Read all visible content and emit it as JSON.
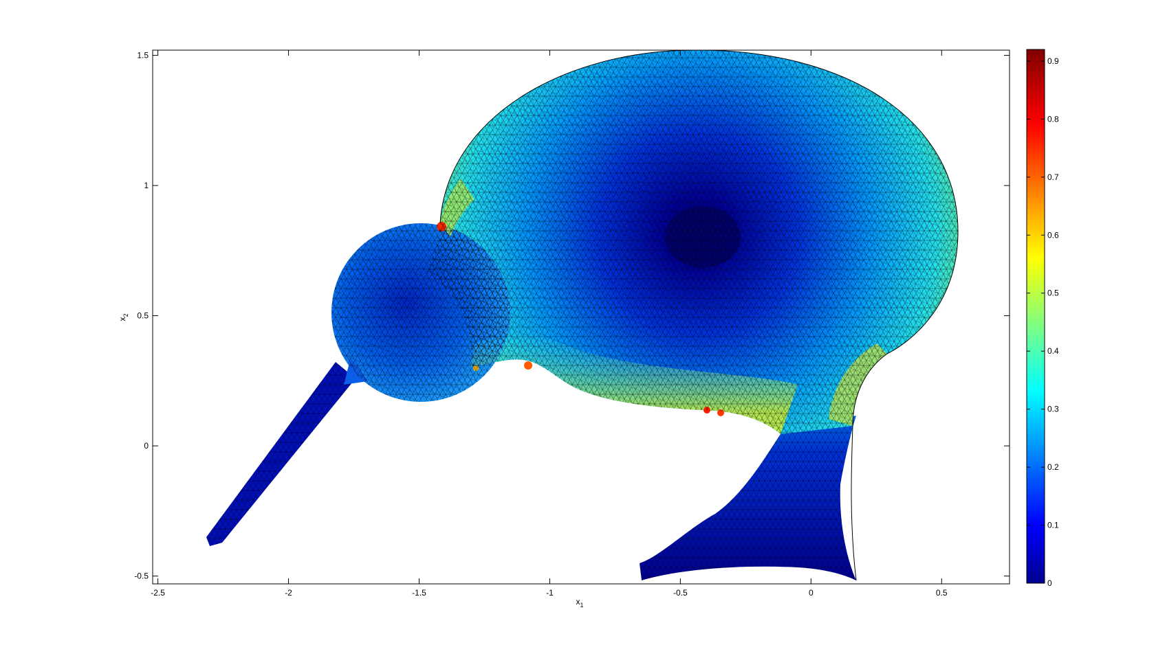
{
  "chart_data": {
    "type": "heatmap",
    "title": "",
    "xlabel": "x",
    "xlabel_sub": "1",
    "ylabel": "x",
    "ylabel_sub": "2",
    "xlim": [
      -2.52,
      0.76
    ],
    "ylim": [
      -0.53,
      1.52
    ],
    "xticks": [
      -2.5,
      -2,
      -1.5,
      -1,
      -0.5,
      0,
      0.5
    ],
    "xtick_labels": [
      "-2.5",
      "-2",
      "-1.5",
      "-1",
      "-0.5",
      "0",
      "0.5"
    ],
    "yticks": [
      -0.5,
      0,
      0.5,
      1,
      1.5
    ],
    "ytick_labels": [
      "-0.5",
      "0",
      "0.5",
      "1",
      "1.5"
    ],
    "colorbar": {
      "colormap": "jet",
      "range": [
        0,
        0.92
      ],
      "ticks": [
        0,
        0.1,
        0.2,
        0.3,
        0.4,
        0.5,
        0.6,
        0.7,
        0.8,
        0.9
      ],
      "tick_labels": [
        "0",
        "0.1",
        "0.2",
        "0.3",
        "0.4",
        "0.5",
        "0.6",
        "0.7",
        "0.8",
        "0.9"
      ]
    },
    "mesh": "triangular finite-element mesh, black edges",
    "grid": false
  }
}
